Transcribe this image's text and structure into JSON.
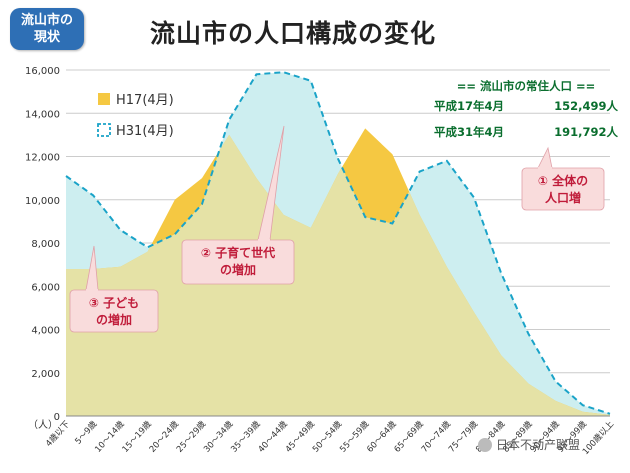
{
  "badge": {
    "line1": "流山市の",
    "line2": "現状"
  },
  "title": "流山市の人口構成の変化",
  "population": {
    "header": "== 流山市の常住人口 ==",
    "rows": [
      {
        "label": "平成17年4月",
        "value": "152,499人"
      },
      {
        "label": "平成31年4月",
        "value": "191,792人"
      }
    ]
  },
  "callouts": [
    {
      "id": "c1",
      "line1": "① 全体の",
      "line2": "人口増"
    },
    {
      "id": "c2",
      "line1": "② 子育て世代",
      "line2": "の増加"
    },
    {
      "id": "c3",
      "line1": "③ 子ども",
      "line2": "の増加"
    }
  ],
  "watermark": "日本不动产联盟",
  "colors": {
    "h17_fill": "#f5c842",
    "h31_line": "#1aa3c8",
    "h31_fill": "#cdeef0",
    "overlap_fill": "#e5e2a6",
    "callout_bg": "#f9dcdc",
    "callout_text": "#c01c3a",
    "badge_bg": "#2e6fb5",
    "pop_text": "#0a6e2e"
  },
  "chart_data": {
    "type": "area",
    "ylabel": "（人）",
    "ylim": [
      0,
      16000
    ],
    "yticks": [
      "0",
      "2,000",
      "4,000",
      "6,000",
      "8,000",
      "10,000",
      "12,000",
      "14,000",
      "16,000"
    ],
    "categories": [
      "4歳以下",
      "5～9歳",
      "10～14歳",
      "15～19歳",
      "20～24歳",
      "25～29歳",
      "30～34歳",
      "35～39歳",
      "40～44歳",
      "45～49歳",
      "50～54歳",
      "55～59歳",
      "60～64歳",
      "65～69歳",
      "70～74歳",
      "75～79歳",
      "80～84歳",
      "85～89歳",
      "90～94歳",
      "95～99歳",
      "100歳以上"
    ],
    "series": [
      {
        "name": "H17(4月)",
        "style": "filled-area",
        "values": [
          6800,
          6800,
          6900,
          7600,
          10000,
          11000,
          13000,
          11000,
          9300,
          8700,
          11200,
          13300,
          12100,
          9300,
          6900,
          4800,
          2800,
          1500,
          700,
          200,
          50
        ]
      },
      {
        "name": "H31(4月)",
        "style": "dashed-line",
        "values": [
          11100,
          10200,
          8600,
          7800,
          8400,
          9800,
          13700,
          15800,
          15900,
          15500,
          11900,
          9200,
          8900,
          11300,
          11800,
          10100,
          6600,
          3800,
          1600,
          500,
          100
        ]
      }
    ],
    "legend_position": "top-left",
    "grid": true
  }
}
